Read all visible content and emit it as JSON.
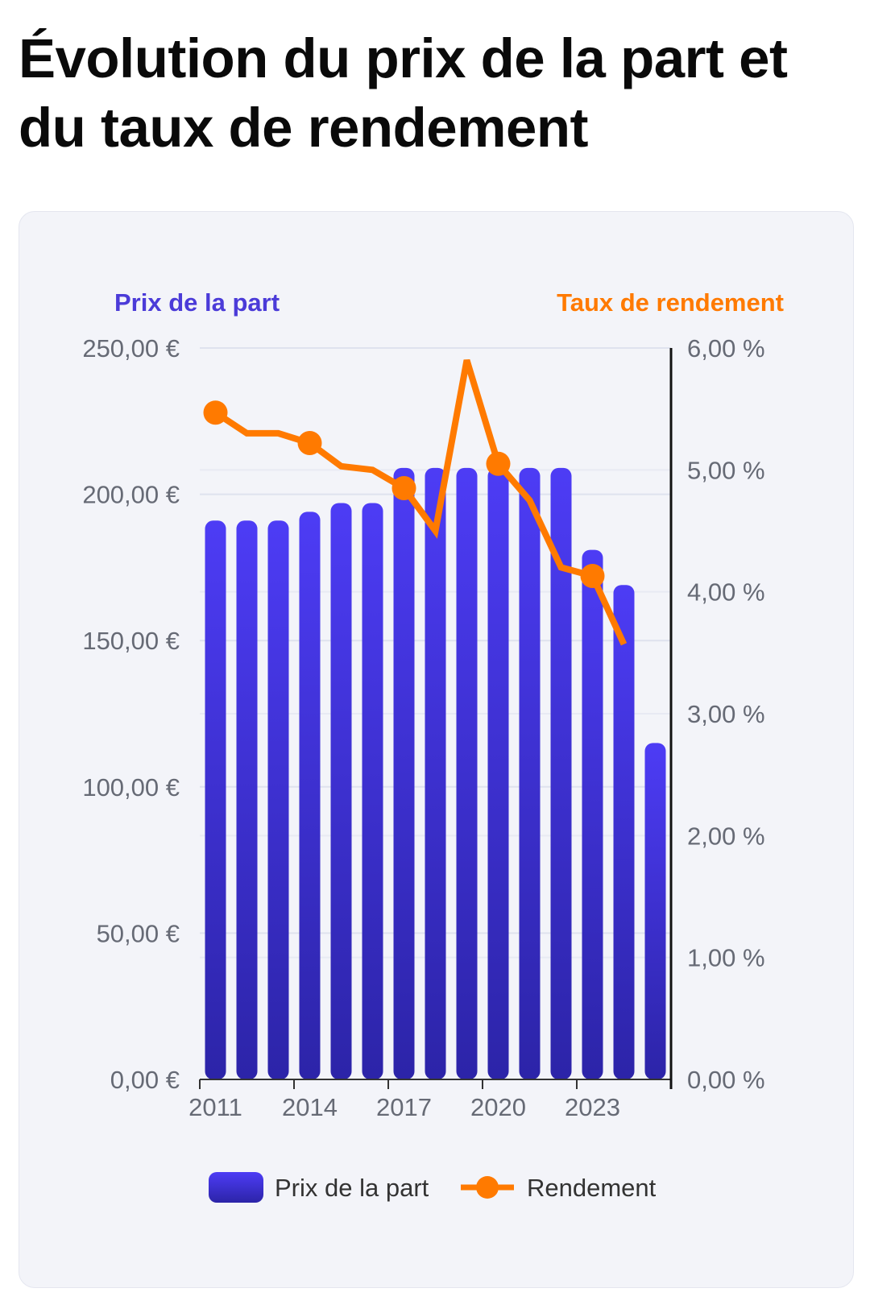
{
  "title": "Évolution du prix de la part et du taux de rendement",
  "colors": {
    "bar_top": "#4d3cf5",
    "bar_bottom": "#2c24a8",
    "line": "#ff7a00",
    "left_axis_title": "#4b3bd8",
    "right_axis_title": "#ff7a00"
  },
  "chart_data": {
    "type": "bar",
    "categories": [
      "2011",
      "2012",
      "2013",
      "2014",
      "2015",
      "2016",
      "2017",
      "2018",
      "2019",
      "2020",
      "2021",
      "2022",
      "2023",
      "2024",
      "2025"
    ],
    "x_tick_labels": [
      "2011",
      "2014",
      "2017",
      "2020",
      "2023"
    ],
    "left_axis": {
      "title": "Prix de la part",
      "ticks": [
        "0,00 €",
        "50,00 €",
        "100,00 €",
        "150,00 €",
        "200,00 €",
        "250,00 €"
      ],
      "ylim": [
        0,
        250
      ]
    },
    "right_axis": {
      "title": "Taux de rendement",
      "ticks": [
        "0,00 %",
        "1,00 %",
        "2,00 %",
        "3,00 %",
        "4,00 %",
        "5,00 %",
        "6,00 %"
      ],
      "ylim": [
        0,
        6
      ]
    },
    "series": [
      {
        "name": "Prix de la part",
        "type": "bar",
        "axis": "left",
        "values": [
          191,
          191,
          191,
          194,
          197,
          197,
          209,
          209,
          209,
          209,
          209,
          209,
          181,
          169,
          115
        ]
      },
      {
        "name": "Rendement",
        "type": "line",
        "axis": "right",
        "values": [
          5.47,
          5.3,
          5.3,
          5.22,
          5.03,
          5.0,
          4.85,
          4.5,
          5.9,
          5.05,
          4.75,
          4.2,
          4.13,
          3.57,
          null
        ],
        "markers_at": [
          "2011",
          "2014",
          "2017",
          "2020",
          "2023"
        ]
      }
    ],
    "legend": [
      "Prix de la part",
      "Rendement"
    ],
    "legend_position": "bottom",
    "grid": true
  }
}
